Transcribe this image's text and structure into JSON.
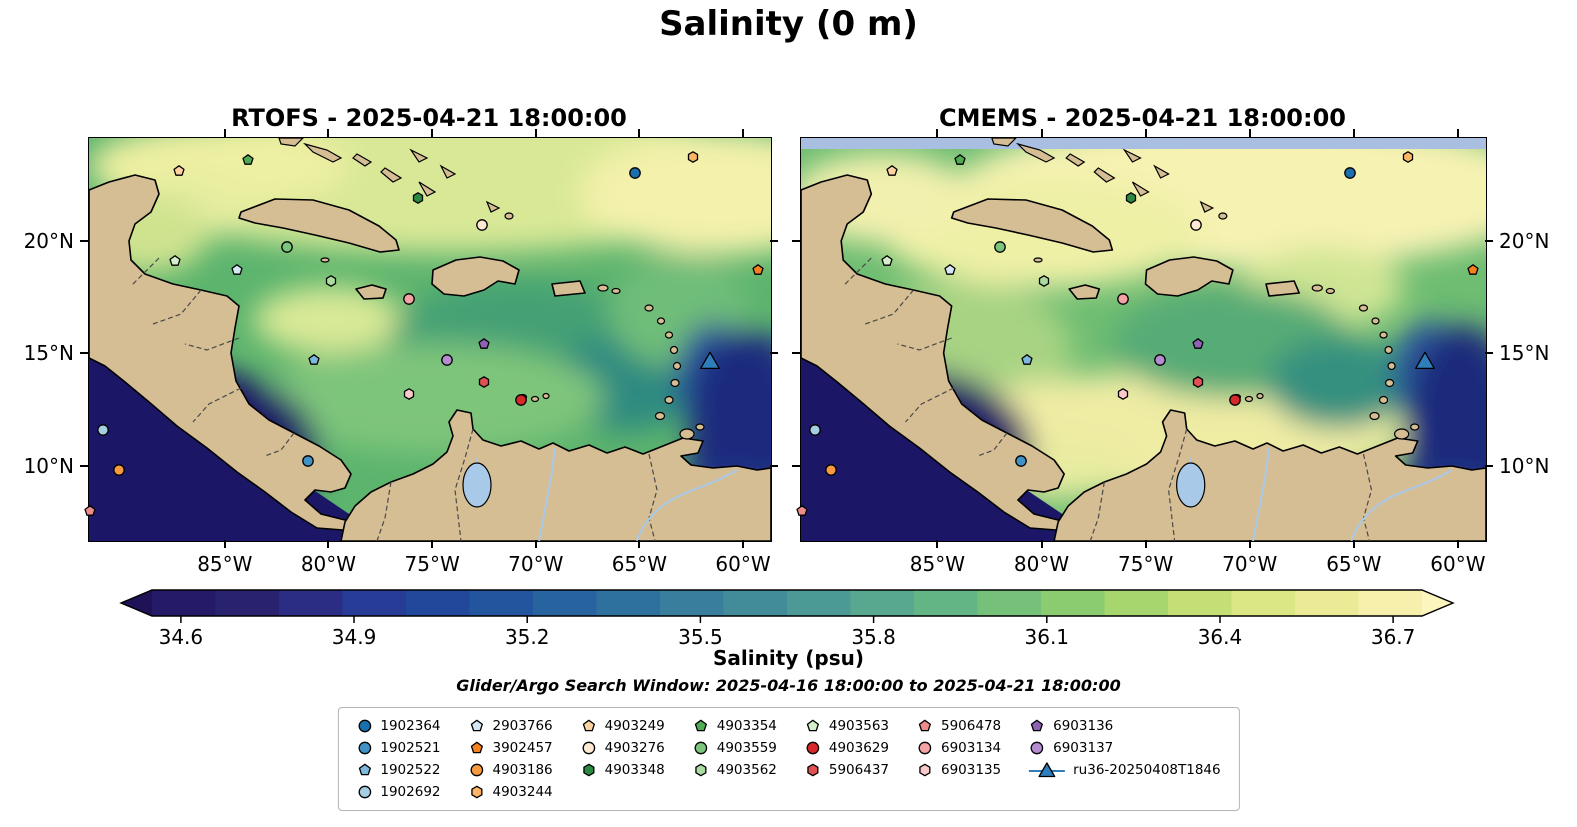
{
  "figure": {
    "title": "Salinity (0 m)",
    "subtitle": "Glider/Argo Search Window: 2025-04-16 18:00:00 to 2025-04-21 18:00:00"
  },
  "chart_data": {
    "type": "heatmap",
    "description": "Two-panel sea-surface salinity model comparison map of the Caribbean Sea with Argo float and glider positions",
    "panels": [
      {
        "id": "rtofs",
        "model": "RTOFS",
        "time": "2025-04-21 18:00:00",
        "title": "RTOFS - 2025-04-21 18:00:00"
      },
      {
        "id": "cmems",
        "model": "CMEMS",
        "time": "2025-04-21 18:00:00",
        "title": "CMEMS - 2025-04-21 18:00:00"
      }
    ],
    "x_axis": {
      "ticks": [
        85,
        80,
        75,
        70,
        65,
        60
      ],
      "labels": [
        "85°W",
        "80°W",
        "75°W",
        "70°W",
        "65°W",
        "60°W"
      ],
      "range_west": [
        91.6,
        58.7
      ]
    },
    "y_axis": {
      "ticks": [
        20,
        15,
        10
      ],
      "labels": [
        "20°N",
        "15°N",
        "10°N"
      ],
      "range_north": [
        24.6,
        6.7
      ]
    },
    "colorbar": {
      "label": "Salinity (psu)",
      "ticks": [
        34.6,
        34.9,
        35.2,
        35.5,
        35.8,
        36.1,
        36.4,
        36.7
      ],
      "range": [
        34.55,
        36.75
      ],
      "under_color": "#1f1257",
      "over_color": "#fcf5bd",
      "colors": [
        "#251a68",
        "#29226f",
        "#2b2d85",
        "#273c96",
        "#21489b",
        "#22559e",
        "#27639f",
        "#2f719e",
        "#397f9d",
        "#428c9a",
        "#4c9a96",
        "#57a88f",
        "#64b586",
        "#75c17a",
        "#8ccc70",
        "#a8d66e",
        "#c4df76",
        "#dbe685",
        "#ebeb97",
        "#f6f0ac"
      ]
    },
    "map_colors": {
      "land": "#d5bd94",
      "coastline": "#000000",
      "lake_river": "#a9c9e8",
      "pacific_deep": "#1b1766",
      "cmems_domain_edge": "#a9bfe2"
    },
    "markers": [
      {
        "id": "4903249",
        "lon_w": 87.2,
        "lat_n": 23.1
      },
      {
        "id": "4903354",
        "lon_w": 83.9,
        "lat_n": 23.6
      },
      {
        "id": "4903348",
        "lon_w": 75.7,
        "lat_n": 21.9
      },
      {
        "id": "1902364",
        "lon_w": 65.2,
        "lat_n": 23.0
      },
      {
        "id": "4903244",
        "lon_w": 62.4,
        "lat_n": 23.7
      },
      {
        "id": "3902457",
        "lon_w": 59.3,
        "lat_n": 18.7
      },
      {
        "id": "4903276",
        "lon_w": 72.6,
        "lat_n": 20.7
      },
      {
        "id": "4903559",
        "lon_w": 82.0,
        "lat_n": 19.7
      },
      {
        "id": "4903563",
        "lon_w": 87.4,
        "lat_n": 19.1
      },
      {
        "id": "2903766",
        "lon_w": 84.4,
        "lat_n": 18.7
      },
      {
        "id": "4903562",
        "lon_w": 79.9,
        "lat_n": 18.2
      },
      {
        "id": "6903134",
        "lon_w": 76.1,
        "lat_n": 17.4
      },
      {
        "id": "6903136",
        "lon_w": 72.5,
        "lat_n": 15.4
      },
      {
        "id": "6903137",
        "lon_w": 74.3,
        "lat_n": 14.7
      },
      {
        "id": "1902522",
        "lon_w": 80.7,
        "lat_n": 14.7
      },
      {
        "id": "5906437",
        "lon_w": 72.5,
        "lat_n": 13.7
      },
      {
        "id": "6903135",
        "lon_w": 76.1,
        "lat_n": 13.2
      },
      {
        "id": "4903629",
        "lon_w": 70.7,
        "lat_n": 12.9
      },
      {
        "id": "1902692",
        "lon_w": 90.9,
        "lat_n": 11.6
      },
      {
        "id": "4903186",
        "lon_w": 90.1,
        "lat_n": 9.8
      },
      {
        "id": "1902521",
        "lon_w": 81.0,
        "lat_n": 10.2
      },
      {
        "id": "5906478",
        "lon_w": 91.5,
        "lat_n": 8.0
      },
      {
        "id": "ru36-20250408T1846",
        "lon_w": 61.6,
        "lat_n": 14.6
      }
    ],
    "legend": {
      "entries": {
        "1902364": {
          "shape": "circle",
          "color": "#1a6faf"
        },
        "1902521": {
          "shape": "circle",
          "color": "#4292c6"
        },
        "1902522": {
          "shape": "pentagon",
          "color": "#7db8dd"
        },
        "1902692": {
          "shape": "circle",
          "color": "#a6cee3"
        },
        "2903766": {
          "shape": "pentagon",
          "color": "#d6e7f4"
        },
        "3902457": {
          "shape": "pentagon",
          "color": "#f5801e"
        },
        "4903186": {
          "shape": "circle",
          "color": "#f89b40"
        },
        "4903244": {
          "shape": "hexagon",
          "color": "#fbb666"
        },
        "4903249": {
          "shape": "pentagon",
          "color": "#fdd3a2"
        },
        "4903276": {
          "shape": "circle",
          "color": "#fee9d2"
        },
        "4903348": {
          "shape": "hexagon",
          "color": "#2a8a41"
        },
        "4903354": {
          "shape": "pentagon",
          "color": "#4fac53"
        },
        "4903559": {
          "shape": "circle",
          "color": "#7cc57c"
        },
        "4903562": {
          "shape": "hexagon",
          "color": "#aadb9f"
        },
        "4903563": {
          "shape": "pentagon",
          "color": "#d5eecb"
        },
        "4903629": {
          "shape": "circle",
          "color": "#d7292a"
        },
        "5906437": {
          "shape": "hexagon",
          "color": "#e05252"
        },
        "5906478": {
          "shape": "pentagon",
          "color": "#ee8c8c"
        },
        "6903134": {
          "shape": "circle",
          "color": "#f3a3a3"
        },
        "6903135": {
          "shape": "hexagon",
          "color": "#fac9c9"
        },
        "6903136": {
          "shape": "pentagon",
          "color": "#8d62b4"
        },
        "6903137": {
          "shape": "circle",
          "color": "#b48ccf"
        },
        "ru36-20250408T1846": {
          "shape": "triangle",
          "color": "#2e7ebc"
        }
      },
      "columns": [
        [
          "1902364",
          "1902521",
          "1902522",
          "1902692"
        ],
        [
          "2903766",
          "3902457",
          "4903186",
          "4903244"
        ],
        [
          "4903249",
          "4903276",
          "4903348"
        ],
        [
          "4903354",
          "4903559",
          "4903562"
        ],
        [
          "4903563",
          "4903629",
          "5906437"
        ],
        [
          "5906478",
          "6903134",
          "6903135"
        ],
        [
          "6903136",
          "6903137",
          "ru36-20250408T1846"
        ]
      ]
    }
  }
}
